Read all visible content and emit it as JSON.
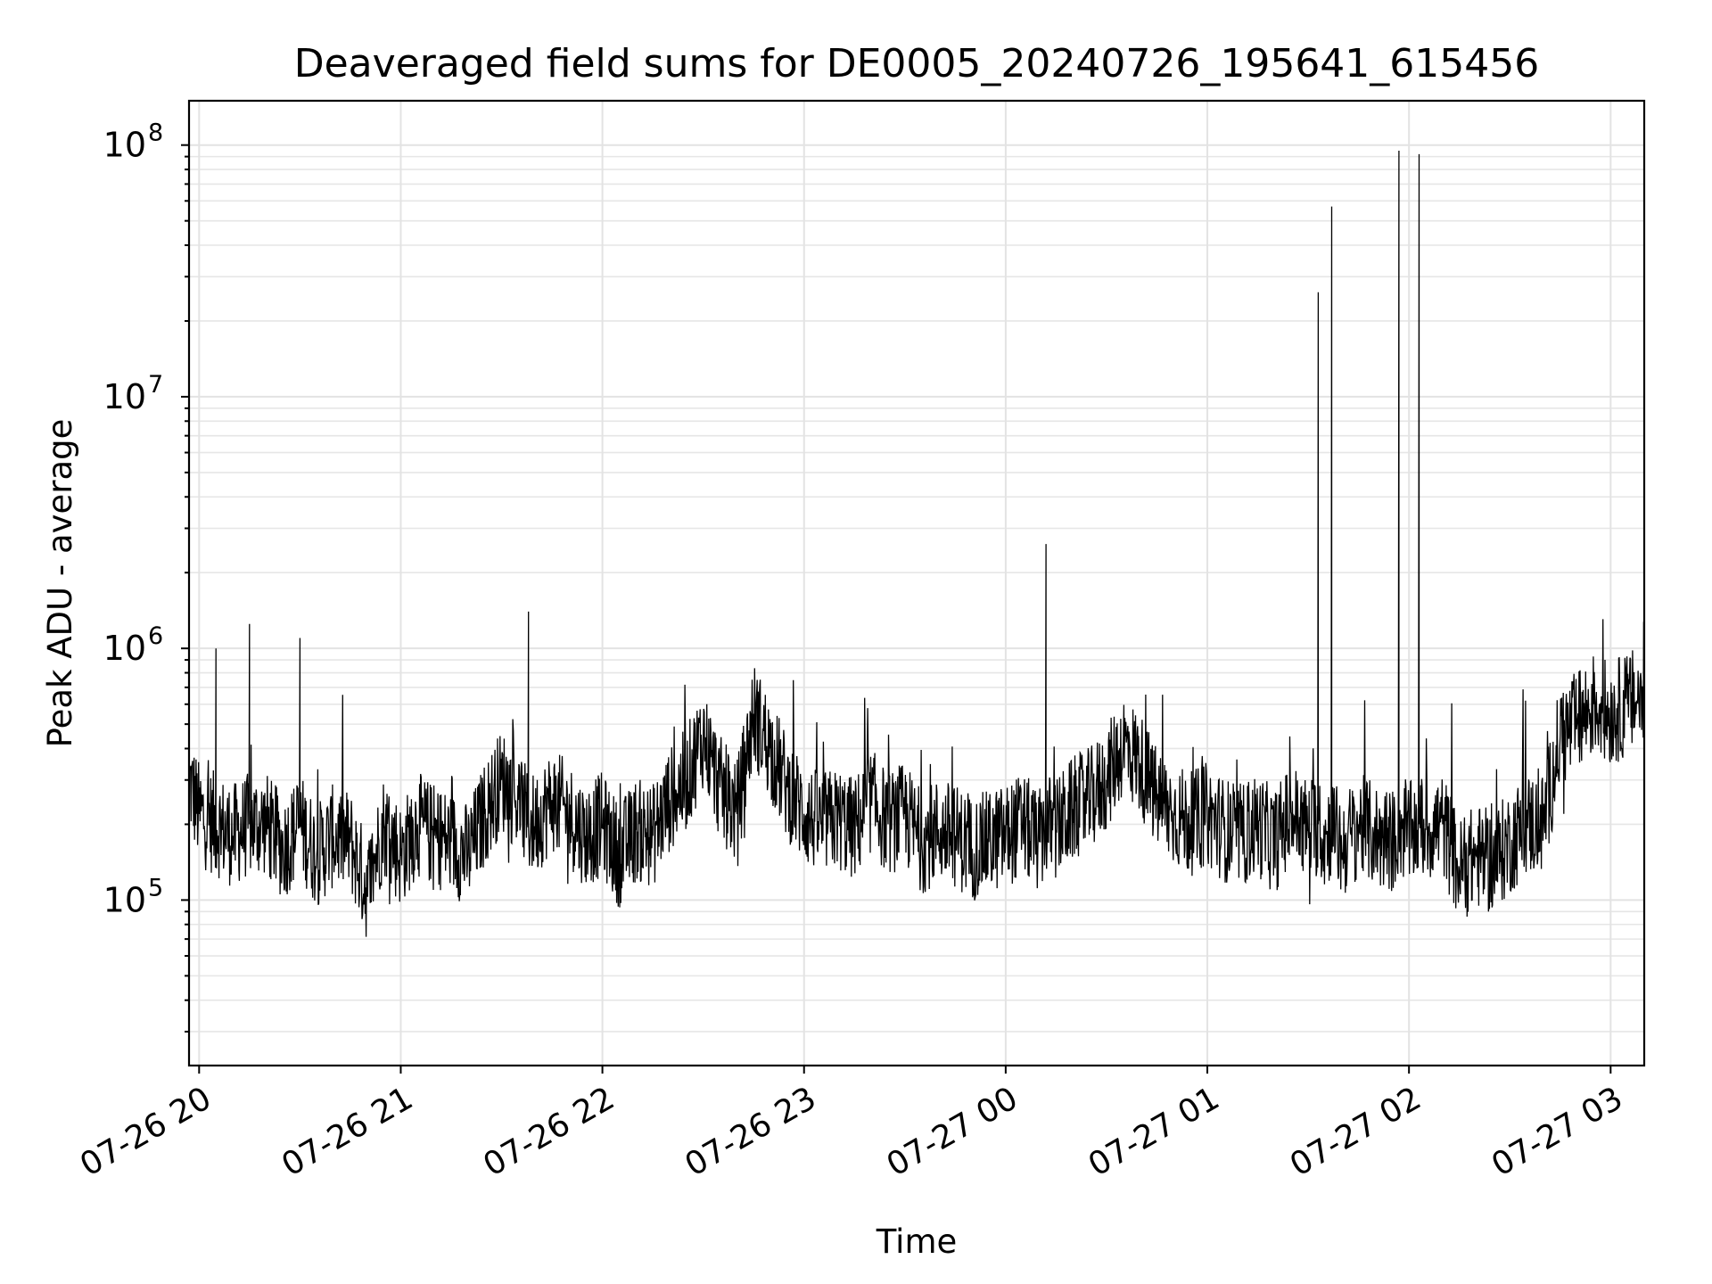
{
  "chart_data": {
    "type": "line",
    "title": "Deaveraged field sums for DE0005_20240726_195641_615456",
    "xlabel": "Time",
    "ylabel": "Peak ADU - average",
    "yscale": "log",
    "grid": true,
    "xlim": [
      "2024-07-26 19:57",
      "2024-07-27 03:10"
    ],
    "ylim": [
      22000,
      150000000
    ],
    "xtick_labels": [
      "07-26 20",
      "07-26 21",
      "07-26 22",
      "07-26 23",
      "07-27 00",
      "07-27 01",
      "07-27 02",
      "07-27 03"
    ],
    "xtick_values": [
      "2024-07-26 20:00",
      "2024-07-26 21:00",
      "2024-07-26 22:00",
      "2024-07-26 23:00",
      "2024-07-27 00:00",
      "2024-07-27 01:00",
      "2024-07-27 02:00",
      "2024-07-27 03:00"
    ],
    "ytick_values": [
      100000,
      1000000,
      10000000,
      100000000
    ],
    "ytick_labels": [
      {
        "base": "10",
        "exp": "5"
      },
      {
        "base": "10",
        "exp": "6"
      },
      {
        "base": "10",
        "exp": "7"
      },
      {
        "base": "10",
        "exp": "8"
      }
    ],
    "series": [
      {
        "color": "#000000",
        "x": [
          "2024-07-26 19:57",
          "2024-07-26 20:00",
          "2024-07-26 20:05",
          "2024-07-26 20:10",
          "2024-07-26 20:15",
          "2024-07-26 20:20",
          "2024-07-26 20:25",
          "2024-07-26 20:30",
          "2024-07-26 20:35",
          "2024-07-26 20:40",
          "2024-07-26 20:45",
          "2024-07-26 20:50",
          "2024-07-26 20:55",
          "2024-07-26 21:00",
          "2024-07-26 21:05",
          "2024-07-26 21:10",
          "2024-07-26 21:15",
          "2024-07-26 21:20",
          "2024-07-26 21:25",
          "2024-07-26 21:30",
          "2024-07-26 21:35",
          "2024-07-26 21:38",
          "2024-07-26 21:40",
          "2024-07-26 21:45",
          "2024-07-26 21:50",
          "2024-07-26 21:55",
          "2024-07-26 22:00",
          "2024-07-26 22:05",
          "2024-07-26 22:10",
          "2024-07-26 22:15",
          "2024-07-26 22:20",
          "2024-07-26 22:25",
          "2024-07-26 22:30",
          "2024-07-26 22:35",
          "2024-07-26 22:40",
          "2024-07-26 22:45",
          "2024-07-26 22:50",
          "2024-07-26 22:55",
          "2024-07-26 23:00",
          "2024-07-26 23:05",
          "2024-07-26 23:10",
          "2024-07-26 23:15",
          "2024-07-26 23:20",
          "2024-07-26 23:25",
          "2024-07-26 23:30",
          "2024-07-26 23:35",
          "2024-07-26 23:40",
          "2024-07-26 23:45",
          "2024-07-26 23:50",
          "2024-07-26 23:55",
          "2024-07-27 00:00",
          "2024-07-27 00:05",
          "2024-07-27 00:10",
          "2024-07-27 00:12",
          "2024-07-27 00:15",
          "2024-07-27 00:20",
          "2024-07-27 00:25",
          "2024-07-27 00:30",
          "2024-07-27 00:35",
          "2024-07-27 00:40",
          "2024-07-27 00:45",
          "2024-07-27 00:50",
          "2024-07-27 00:55",
          "2024-07-27 01:00",
          "2024-07-27 01:05",
          "2024-07-27 01:10",
          "2024-07-27 01:15",
          "2024-07-27 01:20",
          "2024-07-27 01:25",
          "2024-07-27 01:30",
          "2024-07-27 01:33",
          "2024-07-27 01:35",
          "2024-07-27 01:37",
          "2024-07-27 01:40",
          "2024-07-27 01:45",
          "2024-07-27 01:50",
          "2024-07-27 01:55",
          "2024-07-27 01:57",
          "2024-07-27 02:00",
          "2024-07-27 02:03",
          "2024-07-27 02:05",
          "2024-07-27 02:10",
          "2024-07-27 02:15",
          "2024-07-27 02:20",
          "2024-07-27 02:25",
          "2024-07-27 02:30",
          "2024-07-27 02:35",
          "2024-07-27 02:40",
          "2024-07-27 02:45",
          "2024-07-27 02:50",
          "2024-07-27 02:55",
          "2024-07-27 03:00",
          "2024-07-27 03:05",
          "2024-07-27 03:10"
        ],
        "y": [
          300000,
          220000,
          1000000,
          180000,
          1250000,
          200000,
          160000,
          1100000,
          150000,
          180000,
          170000,
          110000,
          200000,
          150000,
          200000,
          180000,
          170000,
          150000,
          220000,
          300000,
          250000,
          1400000,
          200000,
          250000,
          220000,
          180000,
          200000,
          150000,
          190000,
          180000,
          250000,
          300000,
          450000,
          280000,
          220000,
          550000,
          400000,
          280000,
          220000,
          200000,
          210000,
          190000,
          250000,
          200000,
          220000,
          170000,
          190000,
          180000,
          160000,
          170000,
          180000,
          200000,
          170000,
          2600000,
          190000,
          230000,
          250000,
          300000,
          420000,
          350000,
          250000,
          220000,
          200000,
          220000,
          190000,
          180000,
          200000,
          170000,
          220000,
          190000,
          26000000,
          170000,
          57000000,
          160000,
          200000,
          180000,
          170000,
          95000000,
          180000,
          92000000,
          190000,
          200000,
          130000,
          150000,
          140000,
          170000,
          200000,
          200000,
          450000,
          500000,
          600000,
          550000,
          600000,
          650000
        ]
      }
    ]
  }
}
